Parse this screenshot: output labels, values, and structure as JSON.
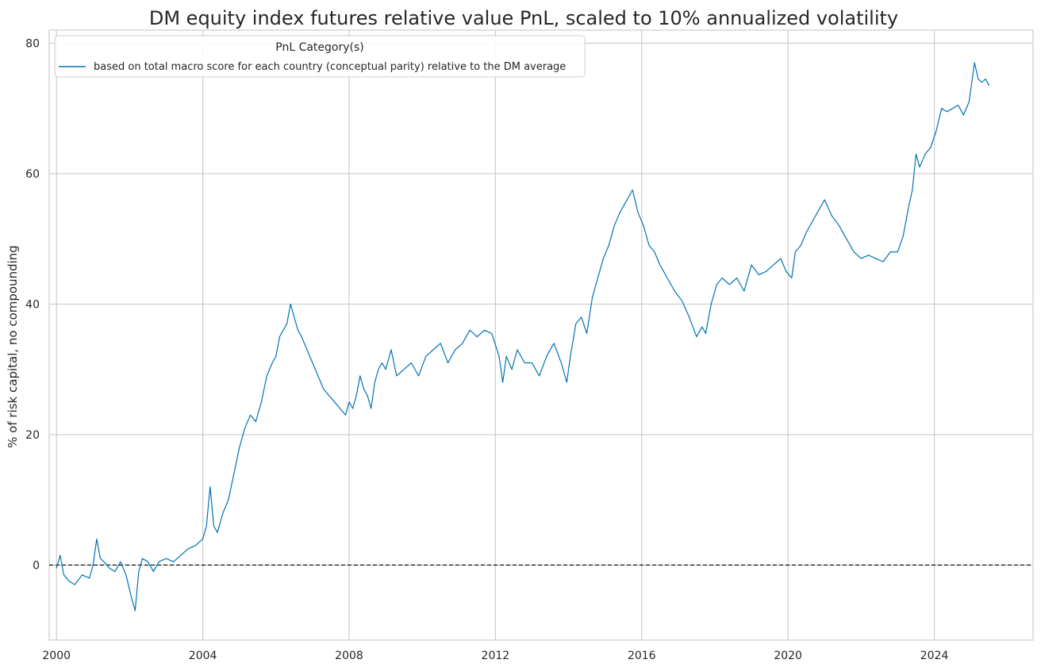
{
  "chart_data": {
    "type": "line",
    "title": "DM equity index futures relative value PnL, scaled to 10% annualized volatility",
    "xlabel": "",
    "ylabel": "% of risk capital, no compounding",
    "xlim": [
      1999.8,
      2026.7
    ],
    "ylim": [
      -11.5,
      82
    ],
    "x_ticks": [
      2000,
      2004,
      2008,
      2012,
      2016,
      2020,
      2024
    ],
    "x_tick_labels": [
      "2000",
      "2004",
      "2008",
      "2012",
      "2016",
      "2020",
      "2024"
    ],
    "y_ticks": [
      0,
      20,
      40,
      60,
      80
    ],
    "y_tick_labels": [
      "0",
      "20",
      "40",
      "60",
      "80"
    ],
    "grid": true,
    "zero_line": {
      "y": 0,
      "style": "dashed",
      "color": "#000000"
    },
    "legend": {
      "title": "PnL Category(s)",
      "placement": "top-left",
      "entries": [
        "based on total macro score for each country (conceptual parity) relative to the DM average"
      ]
    },
    "series": [
      {
        "name": "based on total macro score for each country (conceptual parity) relative to the DM average",
        "color": "#0173b2",
        "x": [
          2000.0,
          2000.1,
          2000.2,
          2000.35,
          2000.5,
          2000.7,
          2000.9,
          2001.0,
          2001.1,
          2001.2,
          2001.3,
          2001.45,
          2001.6,
          2001.75,
          2001.9,
          2002.05,
          2002.15,
          2002.25,
          2002.35,
          2002.5,
          2002.65,
          2002.8,
          2003.0,
          2003.2,
          2003.4,
          2003.6,
          2003.8,
          2004.0,
          2004.1,
          2004.2,
          2004.3,
          2004.4,
          2004.55,
          2004.7,
          2004.85,
          2005.0,
          2005.15,
          2005.3,
          2005.45,
          2005.6,
          2005.75,
          2005.9,
          2006.0,
          2006.1,
          2006.2,
          2006.3,
          2006.4,
          2006.5,
          2006.6,
          2006.7,
          2006.85,
          2007.0,
          2007.15,
          2007.3,
          2007.45,
          2007.6,
          2007.75,
          2007.9,
          2008.0,
          2008.1,
          2008.2,
          2008.3,
          2008.4,
          2008.5,
          2008.6,
          2008.7,
          2008.8,
          2008.9,
          2009.0,
          2009.15,
          2009.3,
          2009.5,
          2009.7,
          2009.9,
          2010.1,
          2010.3,
          2010.5,
          2010.7,
          2010.9,
          2011.1,
          2011.3,
          2011.5,
          2011.7,
          2011.9,
          2012.1,
          2012.2,
          2012.3,
          2012.45,
          2012.6,
          2012.8,
          2013.0,
          2013.2,
          2013.4,
          2013.6,
          2013.8,
          2013.95,
          2014.05,
          2014.2,
          2014.35,
          2014.5,
          2014.65,
          2014.8,
          2014.95,
          2015.1,
          2015.25,
          2015.4,
          2015.5,
          2015.6,
          2015.75,
          2015.9,
          2016.05,
          2016.2,
          2016.35,
          2016.5,
          2016.7,
          2016.9,
          2017.1,
          2017.3,
          2017.5,
          2017.65,
          2017.75,
          2017.9,
          2018.05,
          2018.2,
          2018.4,
          2018.6,
          2018.8,
          2019.0,
          2019.2,
          2019.4,
          2019.6,
          2019.8,
          2019.95,
          2020.1,
          2020.2,
          2020.35,
          2020.5,
          2020.7,
          2020.9,
          2021.0,
          2021.2,
          2021.4,
          2021.6,
          2021.8,
          2022.0,
          2022.2,
          2022.4,
          2022.6,
          2022.8,
          2023.0,
          2023.15,
          2023.3,
          2023.4,
          2023.5,
          2023.6,
          2023.75,
          2023.9,
          2024.05,
          2024.2,
          2024.35,
          2024.5,
          2024.65,
          2024.8,
          2024.95,
          2025.1,
          2025.2,
          2025.3,
          2025.4,
          2025.5
        ],
        "values": [
          -0.5,
          1.5,
          -1.5,
          -2.5,
          -3.0,
          -1.5,
          -2.0,
          0.0,
          4.0,
          1.0,
          0.5,
          -0.5,
          -1.0,
          0.5,
          -1.5,
          -5.0,
          -7.0,
          -1.0,
          1.0,
          0.5,
          -1.0,
          0.5,
          1.0,
          0.5,
          1.5,
          2.5,
          3.0,
          4.0,
          6.0,
          12.0,
          6.0,
          5.0,
          8.0,
          10.0,
          14.0,
          18.0,
          21.0,
          23.0,
          22.0,
          25.0,
          29.0,
          31.0,
          32.0,
          35.0,
          36.0,
          37.0,
          40.0,
          38.0,
          36.0,
          35.0,
          33.0,
          31.0,
          29.0,
          27.0,
          26.0,
          25.0,
          24.0,
          23.0,
          25.0,
          24.0,
          26.0,
          29.0,
          27.0,
          26.0,
          24.0,
          28.0,
          30.0,
          31.0,
          30.0,
          33.0,
          29.0,
          30.0,
          31.0,
          29.0,
          32.0,
          33.0,
          34.0,
          31.0,
          33.0,
          34.0,
          36.0,
          35.0,
          36.0,
          35.5,
          32.0,
          28.0,
          32.0,
          30.0,
          33.0,
          31.0,
          31.0,
          29.0,
          32.0,
          34.0,
          31.0,
          28.0,
          32.0,
          37.0,
          38.0,
          35.5,
          41.0,
          44.0,
          47.0,
          49.0,
          52.0,
          54.0,
          55.0,
          56.0,
          57.5,
          54.0,
          52.0,
          49.0,
          48.0,
          46.0,
          44.0,
          42.0,
          40.5,
          38.0,
          35.0,
          36.5,
          35.5,
          40.0,
          43.0,
          44.0,
          43.0,
          44.0,
          42.0,
          46.0,
          44.5,
          45.0,
          46.0,
          47.0,
          45.0,
          44.0,
          48.0,
          49.0,
          51.0,
          53.0,
          55.0,
          56.0,
          53.5,
          52.0,
          50.0,
          48.0,
          47.0,
          47.5,
          47.0,
          46.5,
          48.0,
          48.0,
          50.5,
          55.0,
          57.5,
          63.0,
          61.0,
          63.0,
          64.0,
          66.5,
          70.0,
          69.5,
          70.0,
          70.5,
          69.0,
          71.0,
          77.0,
          74.5,
          74.0,
          74.5,
          73.5
        ]
      }
    ]
  }
}
